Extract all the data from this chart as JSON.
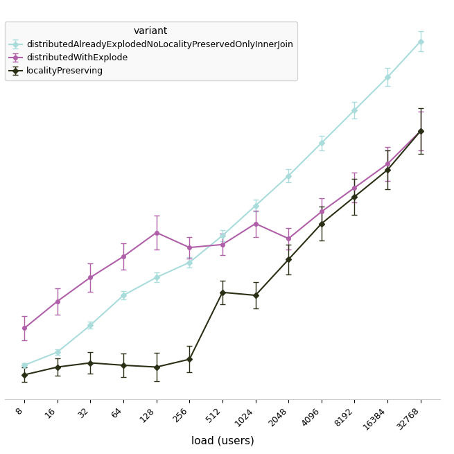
{
  "xlabel": "load (users)",
  "legend_title": "variant",
  "x_values": [
    8,
    16,
    32,
    64,
    128,
    256,
    512,
    1024,
    2048,
    4096,
    8192,
    16384,
    32768
  ],
  "series": [
    {
      "label": "distributedAlreadyExplodedNoLocalityPreservedOnlyInnerJoin",
      "color": "#aadcdc",
      "y_values": [
        38,
        60,
        105,
        155,
        185,
        210,
        255,
        305,
        355,
        410,
        465,
        520,
        580
      ],
      "yerr": [
        4,
        5,
        6,
        7,
        8,
        9,
        9,
        10,
        11,
        12,
        14,
        15,
        17
      ],
      "marker": "D",
      "linewidth": 1.5,
      "markersize": 4
    },
    {
      "label": "distributedWithExplode",
      "color": "#b060a8",
      "y_values": [
        100,
        145,
        185,
        220,
        260,
        235,
        240,
        275,
        250,
        295,
        335,
        375,
        430
      ],
      "yerr": [
        20,
        22,
        24,
        22,
        28,
        18,
        18,
        22,
        18,
        22,
        25,
        28,
        32
      ],
      "marker": "o",
      "linewidth": 1.5,
      "markersize": 4
    },
    {
      "label": "localityPreserving",
      "color": "#2a3015",
      "y_values": [
        22,
        35,
        42,
        38,
        35,
        48,
        160,
        155,
        215,
        275,
        320,
        365,
        430
      ],
      "yerr": [
        12,
        14,
        18,
        20,
        24,
        22,
        20,
        22,
        25,
        28,
        30,
        32,
        38
      ],
      "marker": "D",
      "linewidth": 1.5,
      "markersize": 4
    }
  ],
  "background_color": "#ffffff",
  "grid_color": "#d8d8d8",
  "legend_facecolor": "#f8f8f8",
  "legend_edgecolor": "#cccccc",
  "xtick_fontsize": 9,
  "xlabel_fontsize": 11,
  "legend_fontsize": 9,
  "legend_title_fontsize": 10
}
